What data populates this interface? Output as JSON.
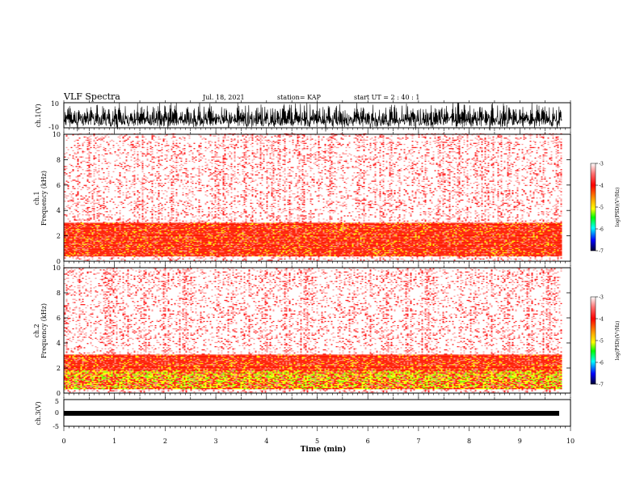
{
  "header": {
    "title": "VLF Spectra",
    "date": "Jul. 18, 2021",
    "station": "station= KAP",
    "start_time": "start  UT =   2 : 40 : 1"
  },
  "colorbar": {
    "label": "log(PSD)(V²/Hz)",
    "ticks": [
      "-3",
      "-4",
      "-5",
      "-6",
      "-7"
    ],
    "colors": [
      "#ffffff",
      "#ff4040",
      "#ff0000",
      "#ffff00",
      "#00ff00",
      "#00ffff",
      "#0000ff",
      "#000040"
    ]
  },
  "chart_data": [
    {
      "type": "line",
      "ylabel": "ch.1(V)",
      "ylim": [
        -10,
        10
      ],
      "y_ticks": [
        "10",
        "-10"
      ],
      "x_range": [
        0,
        10
      ],
      "description_trace": "dense oscillating voltage trace filling most of the range"
    },
    {
      "type": "heatmap",
      "ylabel": "ch.1\nFrequency (kHz)",
      "ylabel_line1": "ch.1",
      "ylabel_line2": "Frequency (kHz)",
      "ylim": [
        0,
        10
      ],
      "y_ticks": [
        "0",
        "2",
        "4",
        "6",
        "8",
        "10"
      ],
      "x_range": [
        0,
        10
      ],
      "data_extent_min": 9.83,
      "intense_band_khz": [
        0.3,
        3.0
      ]
    },
    {
      "type": "heatmap",
      "ylabel_line1": "ch.2",
      "ylabel_line2": "Frequency (kHz)",
      "ylim": [
        0,
        10
      ],
      "y_ticks": [
        "0",
        "2",
        "4",
        "6",
        "8",
        "10"
      ],
      "x_range": [
        0,
        10
      ],
      "data_extent_min": 9.83,
      "intense_band_khz": [
        0.3,
        3.0
      ]
    },
    {
      "type": "line",
      "ylabel": "ch.3(V)",
      "ylim": [
        -5,
        5
      ],
      "y_ticks": [
        "5",
        "0",
        "-5"
      ],
      "x_range": [
        0,
        10
      ],
      "xlabel": "Time (min)",
      "x_ticks": [
        "0",
        "1",
        "2",
        "3",
        "4",
        "5",
        "6",
        "7",
        "8",
        "9",
        "10"
      ]
    }
  ]
}
